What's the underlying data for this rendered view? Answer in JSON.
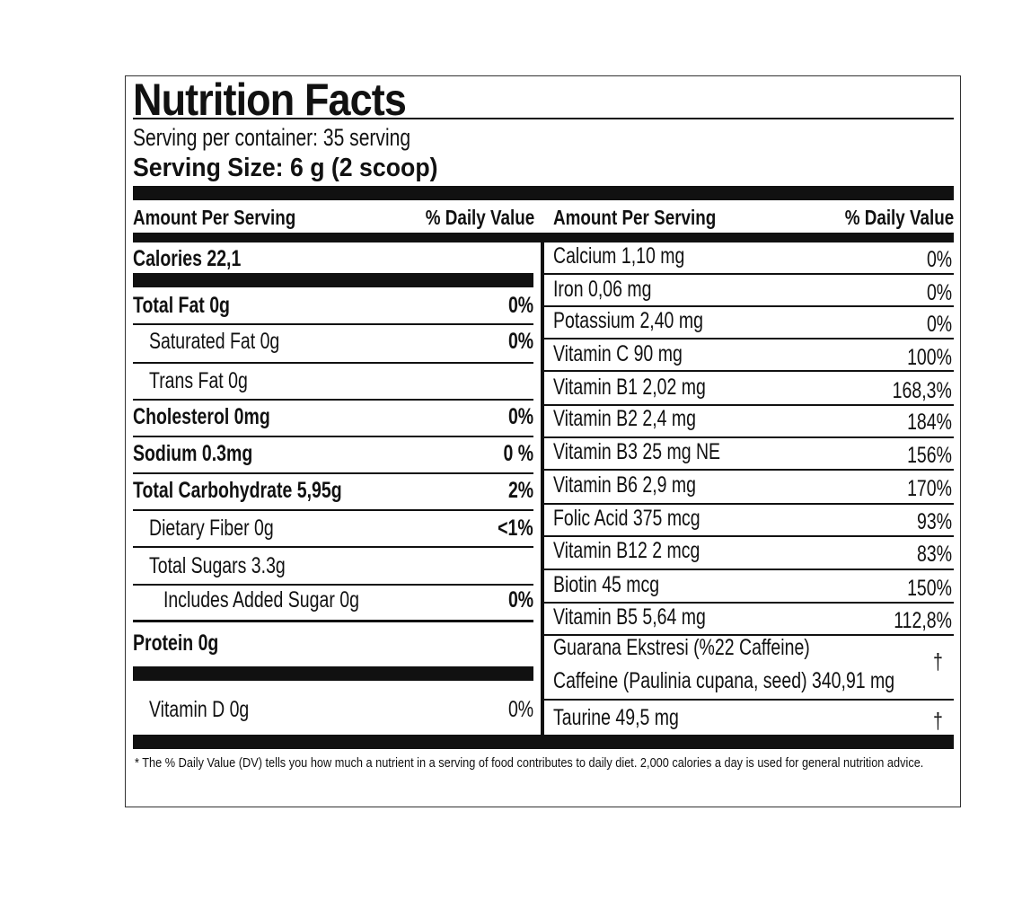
{
  "title": "Nutrition Facts",
  "servings_per_container": "Serving per container: 35 serving",
  "serving_size": "Serving Size: 6 g (2 scoop)",
  "left": {
    "header": {
      "amount": "Amount Per Serving",
      "dv": "% Daily Value"
    },
    "rows": [
      {
        "name": "Calories  22,1"
      },
      {
        "name": "Total Fat  0g",
        "dv": "0%"
      },
      {
        "name": "Saturated Fat  0g",
        "dv": "0%"
      },
      {
        "name": "Trans Fat  0g"
      },
      {
        "name": "Cholesterol  0mg",
        "dv": "0%"
      },
      {
        "name": "Sodium  0.3mg",
        "dv": "0 %"
      },
      {
        "name": "Total Carbohydrate  5,95g",
        "dv": "2%"
      },
      {
        "name": "Dietary Fiber 0g",
        "dv": "<1%"
      },
      {
        "name": "Total Sugars 3.3g"
      },
      {
        "name": "Includes Added Sugar 0g",
        "dv": "0%"
      },
      {
        "name": "Protein  0g"
      },
      {
        "name": "Vitamin D 0g",
        "dv": "0%"
      }
    ]
  },
  "right": {
    "header": {
      "amount": "Amount Per Serving",
      "dv": "% Daily Value"
    },
    "rows": [
      {
        "name": "Calcium 1,10 mg",
        "dv": "0%"
      },
      {
        "name": "Iron 0,06 mg",
        "dv": "0%"
      },
      {
        "name": "Potassium 2,40 mg",
        "dv": "0%"
      },
      {
        "name": "Vitamin C 90 mg",
        "dv": "100%"
      },
      {
        "name": "Vitamin B1 2,02 mg",
        "dv": "168,3%"
      },
      {
        "name": "Vitamin B2 2,4 mg",
        "dv": "184%"
      },
      {
        "name": "Vitamin B3 25 mg NE",
        "dv": "156%"
      },
      {
        "name": "Vitamin B6 2,9 mg",
        "dv": "170%"
      },
      {
        "name": "Folic Acid 375 mcg",
        "dv": "93%"
      },
      {
        "name": "Vitamin B12 2 mcg",
        "dv": "83%"
      },
      {
        "name": "Biotin 45 mcg",
        "dv": "150%"
      },
      {
        "name": "Vitamin B5 5,64 mg",
        "dv": "112,8%"
      },
      {
        "name": "Guarana Ekstresi (%22 Caffeine)",
        "subname": "Caffeine (Paulinia cupana, seed) 340,91 mg",
        "dv": "†"
      },
      {
        "name": "Taurine 49,5 mg",
        "dv": "†"
      }
    ]
  },
  "footnote": "* The % Daily Value (DV) tells you how much a nutrient in a serving of food contributes to daily diet. 2,000 calories a day is used for general nutrition advice."
}
